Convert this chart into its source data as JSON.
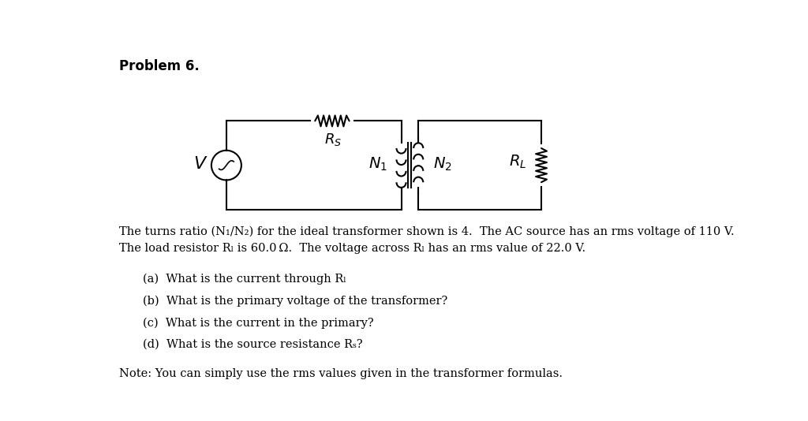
{
  "title": "Problem 6.",
  "background_color": "#ffffff",
  "text_color": "#000000",
  "fig_width": 10.24,
  "fig_height": 5.34,
  "body_text_line1": "The turns ratio (N₁/N₂) for the ideal transformer shown is 4.  The AC source has an rms voltage of 110 V.",
  "body_text_line2": "The load resistor Rₗ is 60.0 Ω.  The voltage across Rₗ has an rms value of 22.0 V.",
  "qa": "(a)  What is the current through Rₗ",
  "qb": "(b)  What is the primary voltage of the transformer?",
  "qc": "(c)  What is the current in the primary?",
  "qd": "(d)  What is the source resistance Rₛ?",
  "note": "Note: You can simply use the rms values given in the transformer formulas."
}
